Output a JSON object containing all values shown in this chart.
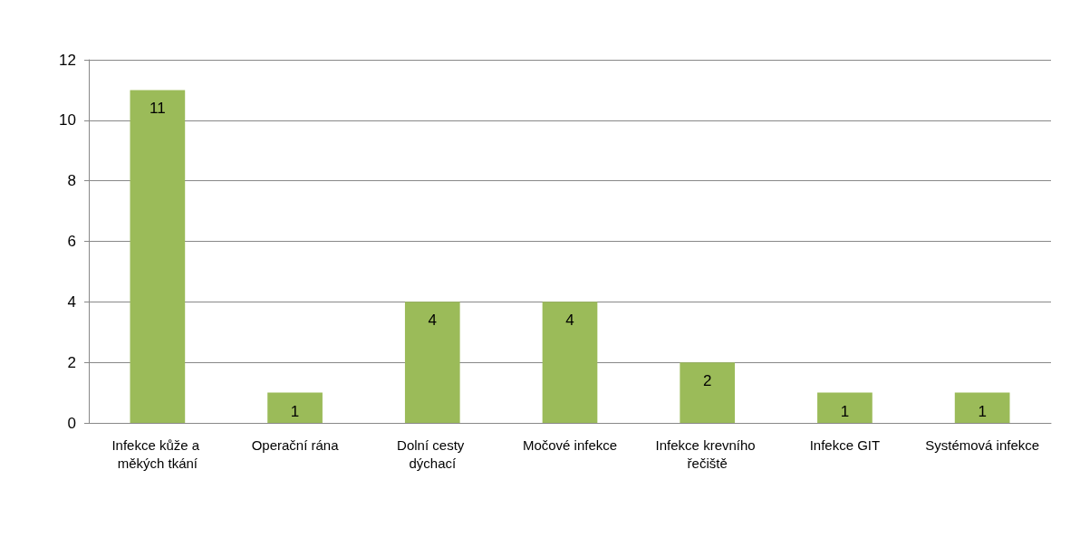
{
  "chart_data": {
    "type": "bar",
    "categories": [
      "Infekce kůže a měkých tkání",
      "Operační rána",
      "Dolní cesty dýchací",
      "Močové infekce",
      "Infekce krevního řečiště",
      "Infekce GIT",
      "Systémová infekce"
    ],
    "values": [
      11,
      1,
      4,
      4,
      2,
      1,
      1
    ],
    "color": "#9bbb59",
    "ylim": [
      0,
      12
    ],
    "yticks": [
      0,
      2,
      4,
      6,
      8,
      10,
      12
    ],
    "grid": "y",
    "data_labels": true
  }
}
